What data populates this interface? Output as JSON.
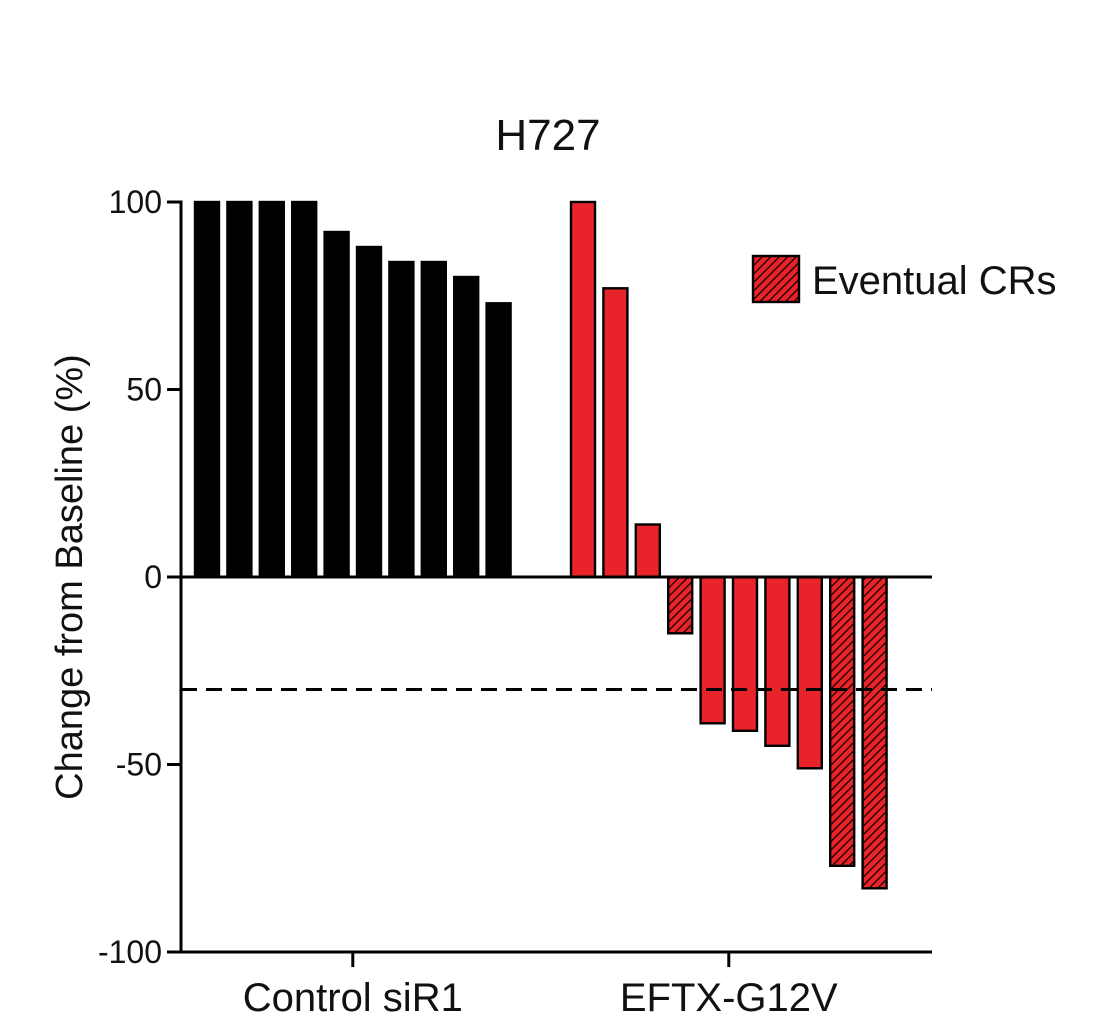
{
  "chart_data": {
    "type": "bar",
    "title": "H727",
    "xlabel": "",
    "ylabel": "Change from Baseline (%)",
    "ylim": [
      -100,
      100
    ],
    "yticks": [
      100,
      50,
      0,
      -50,
      -100
    ],
    "ytick_labels": [
      "100",
      "50",
      "0",
      "-50",
      "-100"
    ],
    "grid": false,
    "reference_line": {
      "y": -30,
      "style": "dashed"
    },
    "groups": [
      {
        "label": "Control siR1",
        "color": "#000000",
        "values": [
          100,
          100,
          100,
          100,
          92,
          88,
          84,
          84,
          80,
          73
        ],
        "eventual_cr": [
          false,
          false,
          false,
          false,
          false,
          false,
          false,
          false,
          false,
          false
        ]
      },
      {
        "label": "EFTX-G12V",
        "color": "#e8232a",
        "values": [
          100,
          77,
          14,
          -15,
          -39,
          -41,
          -45,
          -51,
          -77,
          -83
        ],
        "eventual_cr": [
          false,
          false,
          false,
          true,
          false,
          false,
          false,
          false,
          true,
          true
        ]
      }
    ],
    "legend": {
      "position": "top-right",
      "entries": [
        {
          "label": "Eventual CRs",
          "pattern": "hatched",
          "color": "#e8232a"
        }
      ]
    }
  }
}
